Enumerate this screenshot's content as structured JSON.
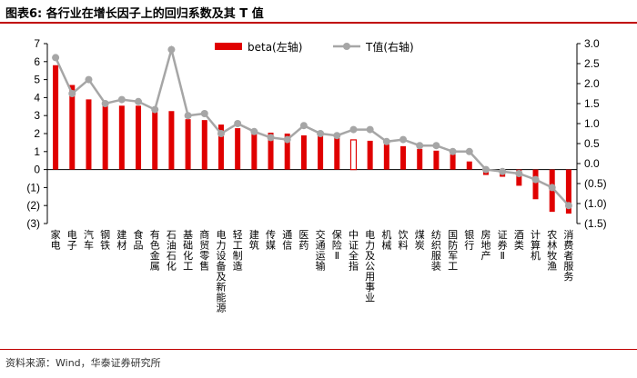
{
  "header": {
    "title": "图表6:   各行业在增长因子上的回归系数及其 T 值"
  },
  "footer": {
    "source": "资料来源：Wind，华泰证券研究所"
  },
  "colors": {
    "bar": "#e00000",
    "line": "#a6a6a6",
    "accent": "#c00000"
  },
  "chart_data": {
    "type": "bar",
    "categories": [
      "家电",
      "电子",
      "汽车",
      "钢铁",
      "建材",
      "食品",
      "有色金属",
      "石油石化",
      "基础化工",
      "商贸零售",
      "电力设备及新能源",
      "轻工制造",
      "建筑",
      "传媒",
      "通信",
      "医药",
      "交通运输",
      "保险Ⅱ",
      "中证全指",
      "电力及公用事业",
      "机械",
      "饮料",
      "煤炭",
      "纺织服装",
      "国防军工",
      "银行",
      "房地产",
      "证券Ⅱ",
      "酒类",
      "计算机",
      "农林牧渔",
      "消费者服务"
    ],
    "series": [
      {
        "name": "beta(左轴)",
        "type": "bar",
        "axis": "left",
        "values": [
          5.8,
          4.7,
          3.9,
          3.55,
          3.55,
          3.55,
          3.2,
          3.25,
          2.8,
          2.75,
          2.5,
          2.3,
          2.0,
          2.05,
          2.0,
          1.9,
          1.9,
          1.75,
          1.65,
          1.6,
          1.4,
          1.3,
          1.15,
          1.05,
          0.85,
          0.45,
          -0.3,
          -0.4,
          -0.9,
          -1.65,
          -2.35,
          -2.45
        ],
        "hollow_index": 18
      },
      {
        "name": "T值(右轴)",
        "type": "line",
        "axis": "right",
        "values": [
          2.65,
          1.75,
          2.1,
          1.5,
          1.6,
          1.55,
          1.35,
          2.85,
          1.2,
          1.25,
          0.75,
          1.0,
          0.8,
          0.65,
          0.6,
          0.95,
          0.75,
          0.7,
          0.85,
          0.85,
          0.55,
          0.6,
          0.45,
          0.45,
          0.3,
          0.3,
          -0.15,
          -0.2,
          -0.25,
          -0.4,
          -0.6,
          -1.05
        ]
      }
    ],
    "y_left": {
      "ticks": [
        "7",
        "6",
        "5",
        "4",
        "3",
        "2",
        "1",
        "0",
        "(1)",
        "(2)",
        "(3)"
      ],
      "ylim": [
        -3,
        7
      ]
    },
    "y_right": {
      "ticks": [
        "3.0",
        "2.5",
        "2.0",
        "1.5",
        "1.0",
        "0.5",
        "0.0",
        "(0.5)",
        "(1.0)",
        "(1.5)"
      ],
      "ylim": [
        -1.5,
        3.0
      ]
    },
    "legend_position": "top-center",
    "grid": false
  }
}
